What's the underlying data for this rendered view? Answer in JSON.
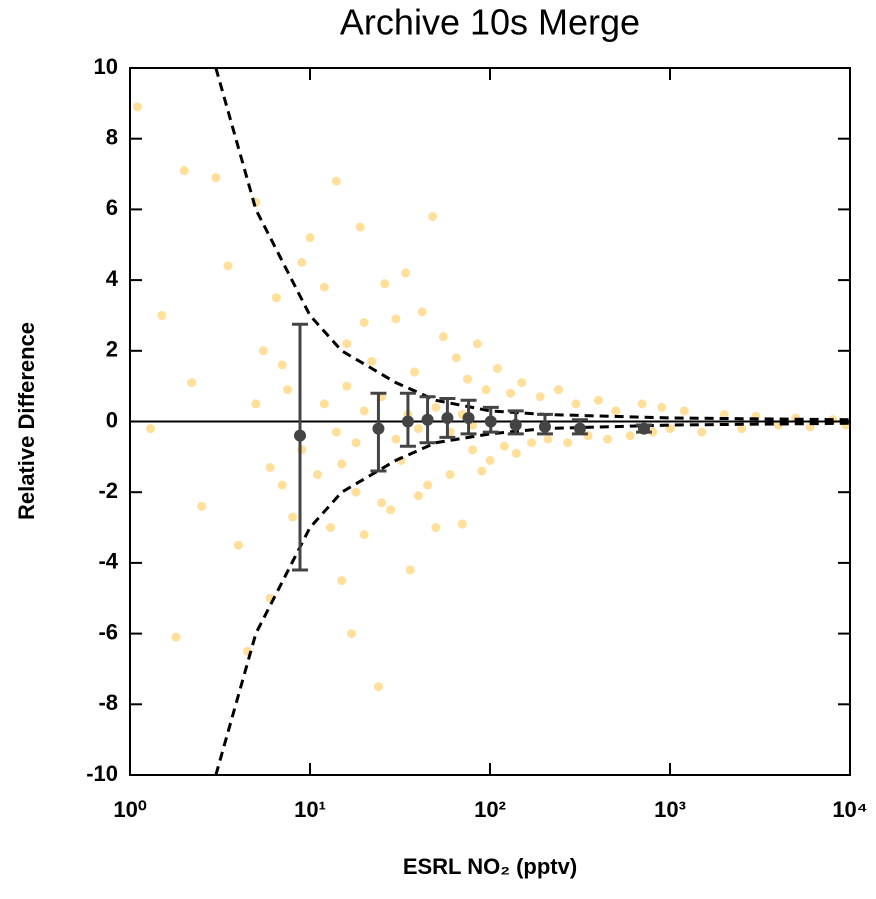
{
  "chart_data": {
    "type": "scatter",
    "title": "Archive 10s Merge",
    "xlabel": "ESRL NO₂ (pptv)",
    "ylabel": "Relative Difference",
    "xlog": true,
    "xlim": [
      1,
      10000
    ],
    "ylim": [
      -10,
      10
    ],
    "xticks": [
      {
        "value": 1,
        "label": "10⁰"
      },
      {
        "value": 10,
        "label": "10¹"
      },
      {
        "value": 100,
        "label": "10²"
      },
      {
        "value": 1000,
        "label": "10³"
      },
      {
        "value": 10000,
        "label": "10⁴"
      }
    ],
    "yticks": [
      -10,
      -8,
      -6,
      -4,
      -2,
      0,
      2,
      4,
      6,
      8,
      10
    ],
    "zero_line": true,
    "points": {
      "color": "#ffb000",
      "x": [
        1.1,
        1.3,
        1.5,
        1.8,
        2,
        2.2,
        2.5,
        3,
        3.5,
        4,
        4.5,
        5,
        5.5,
        6,
        6.5,
        7,
        7.5,
        8,
        9,
        10,
        11,
        12,
        13,
        14,
        15,
        16,
        17,
        18,
        19,
        20,
        22,
        24,
        26,
        28,
        30,
        32,
        34,
        36,
        38,
        40,
        42,
        45,
        48,
        50,
        55,
        60,
        65,
        70,
        75,
        80,
        85,
        90,
        95,
        100,
        110,
        120,
        130,
        140,
        150,
        170,
        190,
        210,
        240,
        270,
        300,
        350,
        400,
        450,
        500,
        600,
        700,
        800,
        900,
        1000,
        1200,
        1500,
        2000,
        2500,
        3000,
        4000,
        5000,
        6000,
        8000,
        9500,
        12,
        14,
        16,
        18,
        20,
        25,
        30,
        35,
        40,
        50,
        60,
        70,
        80,
        15,
        20,
        25,
        9,
        7,
        6,
        5
      ],
      "y": [
        8.9,
        -0.2,
        3,
        -6.1,
        7.1,
        1.1,
        -2.4,
        6.9,
        4.4,
        -3.5,
        -6.5,
        6.2,
        2,
        -5,
        3.5,
        -1.8,
        0.9,
        -2.7,
        4.5,
        5.2,
        -1.5,
        3.8,
        -3,
        6.8,
        -4.5,
        2.2,
        -6,
        -2,
        5.5,
        -3.2,
        1.7,
        -7.5,
        3.9,
        -2.5,
        2.9,
        -1.1,
        4.2,
        -4.2,
        1.4,
        -2.1,
        3.1,
        -1.8,
        5.8,
        -3,
        2.4,
        -1.5,
        1.8,
        -2.9,
        1.2,
        -0.8,
        2.2,
        -1.4,
        0.9,
        -1.1,
        1.5,
        -0.7,
        0.8,
        -0.9,
        1.1,
        -0.6,
        0.7,
        -0.5,
        0.9,
        -0.6,
        0.5,
        -0.4,
        0.6,
        -0.5,
        0.3,
        -0.4,
        0.5,
        -0.3,
        0.4,
        -0.2,
        0.3,
        -0.3,
        0.2,
        -0.2,
        0.15,
        -0.1,
        0.1,
        -0.15,
        0.05,
        -0.1,
        0.5,
        -0.3,
        1.0,
        -0.6,
        0.3,
        0.7,
        -0.5,
        0.2,
        -0.2,
        0.4,
        -0.3,
        0.2,
        -0.1,
        -1.2,
        2.8,
        -2.3,
        -0.8,
        1.6,
        -1.3,
        0.5
      ]
    },
    "means": {
      "color": "#444444",
      "x": [
        8.8,
        24,
        35,
        45,
        58,
        76,
        101,
        139,
        202,
        316,
        717
      ],
      "values": [
        -0.4,
        -0.2,
        0.0,
        0.05,
        0.1,
        0.1,
        0.0,
        -0.1,
        -0.15,
        -0.2,
        -0.2
      ],
      "low": [
        -4.2,
        -1.4,
        -0.7,
        -0.6,
        -0.45,
        -0.35,
        -0.3,
        -0.35,
        -0.35,
        -0.35,
        -0.3
      ],
      "high": [
        2.75,
        0.8,
        0.8,
        0.7,
        0.65,
        0.6,
        0.4,
        0.3,
        0.2,
        0.05,
        -0.1
      ]
    },
    "envelope": {
      "color": "#000000",
      "x": [
        3,
        5,
        10,
        15,
        30,
        50,
        100,
        200,
        1000,
        10000
      ],
      "upper": [
        10,
        6,
        3,
        2,
        1.1,
        0.6,
        0.3,
        0.2,
        0.1,
        0.05
      ],
      "lower": [
        -10,
        -6,
        -3,
        -2,
        -1.1,
        -0.6,
        -0.35,
        -0.2,
        -0.1,
        -0.05
      ]
    }
  }
}
